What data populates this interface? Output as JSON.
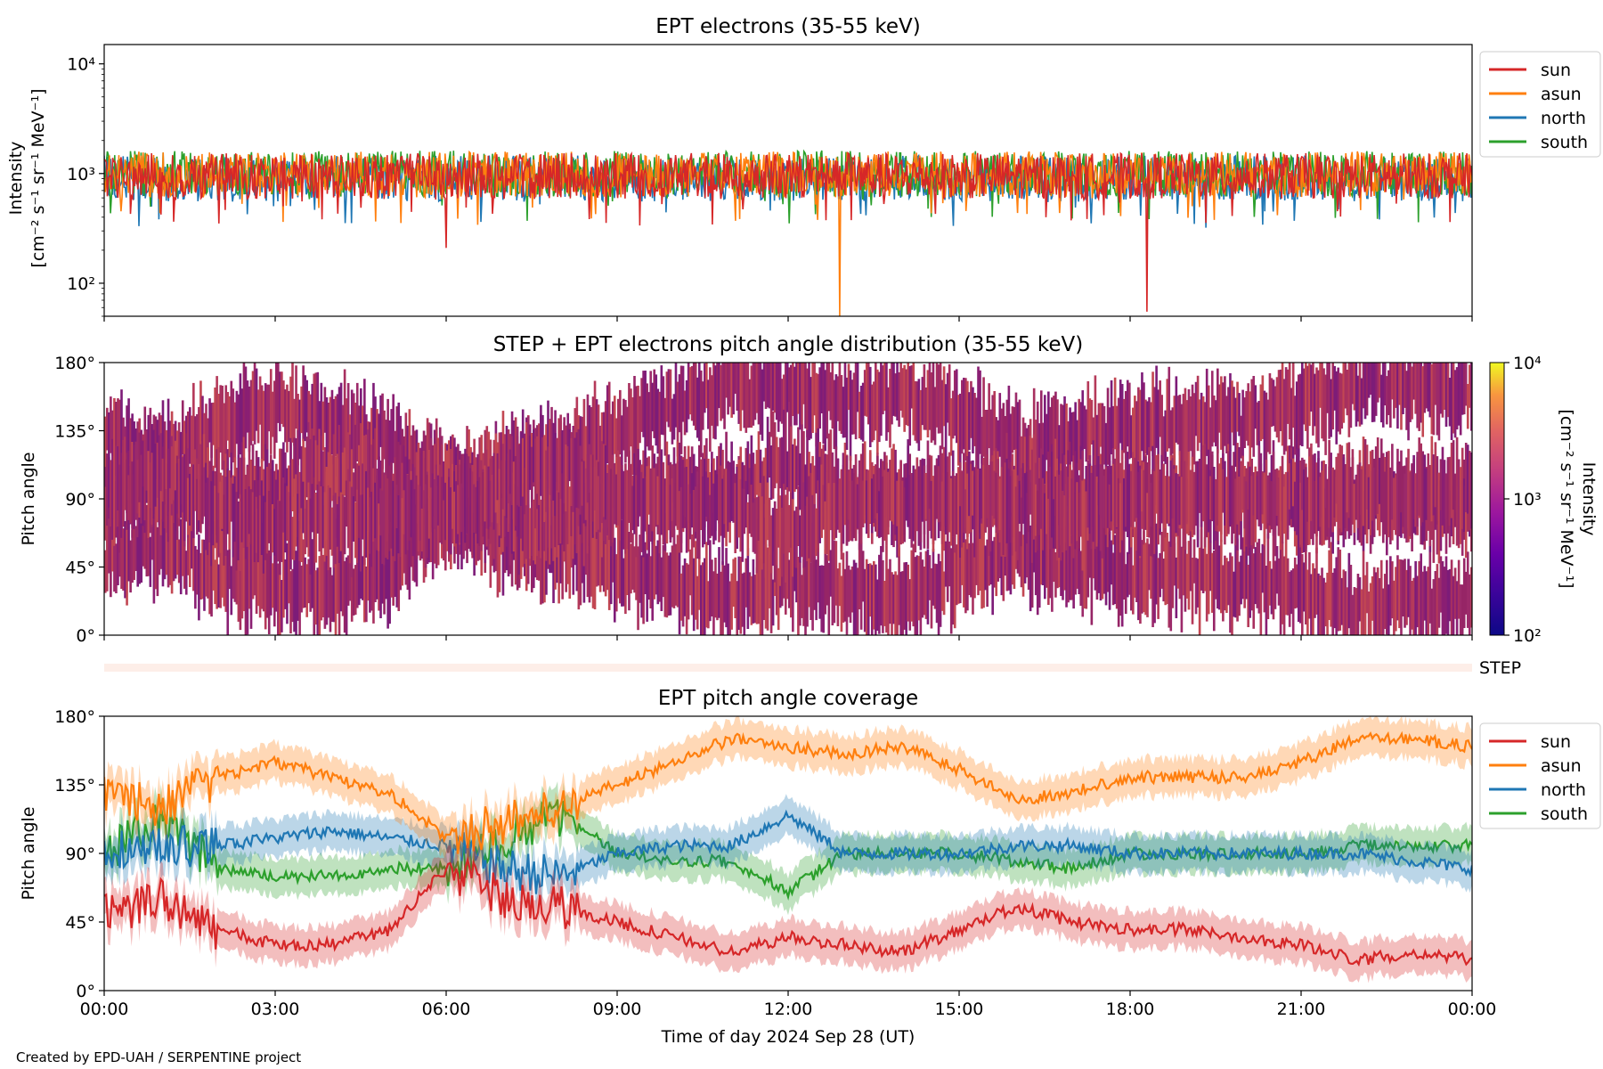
{
  "footer": {
    "credit": "Created by EPD-UAH / SERPENTINE project"
  },
  "colors": {
    "sun": "#d62728",
    "asun": "#ff7f0e",
    "north": "#1f77b4",
    "south": "#2ca02c",
    "step_strip": "#fdeee8"
  },
  "x_axis": {
    "ticks": [
      "00:00",
      "03:00",
      "06:00",
      "09:00",
      "12:00",
      "15:00",
      "18:00",
      "21:00",
      "00:00"
    ],
    "tick_hours": [
      0,
      3,
      6,
      9,
      12,
      15,
      18,
      21,
      24
    ],
    "label": "Time of day 2024 Sep 28 (UT)"
  },
  "step_label": "STEP",
  "chart_data": [
    {
      "id": "intensity",
      "type": "line",
      "title": "EPT electrons (35-55 keV)",
      "ylabel_line1": "Intensity",
      "ylabel_line2": "[cm⁻² s⁻¹ sr⁻¹ MeV⁻¹]",
      "yscale": "log",
      "ylim": [
        50,
        15000
      ],
      "xlim_hours": [
        0,
        24
      ],
      "yticks": [
        100,
        1000,
        10000
      ],
      "ytick_labels": [
        "10²",
        "10³",
        "10⁴"
      ],
      "legend_position": "outside-right-top",
      "series": [
        {
          "name": "sun",
          "color": "#d62728",
          "baseline": 950,
          "min_dips": [
            [
              6.0,
              210
            ],
            [
              18.3,
              55
            ]
          ]
        },
        {
          "name": "asun",
          "color": "#ff7f0e",
          "baseline": 980,
          "min_dips": [
            [
              12.9,
              50
            ]
          ]
        },
        {
          "name": "north",
          "color": "#1f77b4",
          "baseline": 900,
          "min_dips": []
        },
        {
          "name": "south",
          "color": "#2ca02c",
          "baseline": 1000,
          "min_dips": []
        }
      ]
    },
    {
      "id": "pad",
      "type": "heatmap",
      "title": "STEP + EPT electrons pitch angle distribution (35-55 keV)",
      "ylabel": "Pitch angle",
      "ylim": [
        0,
        180
      ],
      "yticks": [
        0,
        45,
        90,
        135,
        180
      ],
      "ytick_labels": [
        "0°",
        "45°",
        "90°",
        "135°",
        "180°"
      ],
      "xlim_hours": [
        0,
        24
      ],
      "colorbar": {
        "scale": "log",
        "range": [
          100,
          10000
        ],
        "tick_labels": [
          "10²",
          "10³",
          "10⁴"
        ],
        "label": "Intensity\n[cm⁻² s⁻¹ sr⁻¹ MeV⁻¹]",
        "colormap": "plasma-like"
      },
      "typical_value": 1000
    },
    {
      "id": "coverage",
      "type": "line",
      "title": "EPT pitch angle coverage",
      "ylabel": "Pitch angle",
      "ylim": [
        0,
        180
      ],
      "yticks": [
        0,
        45,
        90,
        135,
        180
      ],
      "ytick_labels": [
        "0°",
        "45°",
        "90°",
        "135°",
        "180°"
      ],
      "xlim_hours": [
        0,
        24
      ],
      "legend_position": "outside-right-top",
      "x": [
        0,
        1,
        2,
        3,
        4,
        5,
        6,
        7,
        8,
        9,
        10,
        11,
        12,
        13,
        14,
        15,
        16,
        17,
        18,
        19,
        20,
        21,
        22,
        23,
        24
      ],
      "series": [
        {
          "name": "sun",
          "color": "#d62728",
          "values": [
            50,
            60,
            40,
            30,
            30,
            40,
            80,
            60,
            55,
            45,
            35,
            25,
            35,
            30,
            25,
            40,
            55,
            45,
            40,
            40,
            35,
            30,
            20,
            25,
            20
          ]
        },
        {
          "name": "asun",
          "color": "#ff7f0e",
          "values": [
            130,
            120,
            140,
            150,
            140,
            130,
            100,
            110,
            120,
            135,
            150,
            165,
            160,
            155,
            160,
            145,
            125,
            130,
            140,
            140,
            140,
            150,
            165,
            165,
            160
          ]
        },
        {
          "name": "north",
          "color": "#1f77b4",
          "values": [
            90,
            95,
            95,
            100,
            105,
            100,
            95,
            80,
            75,
            90,
            95,
            95,
            115,
            90,
            90,
            90,
            95,
            95,
            90,
            90,
            90,
            90,
            90,
            85,
            80
          ]
        },
        {
          "name": "south",
          "color": "#2ca02c",
          "values": [
            90,
            110,
            80,
            75,
            75,
            80,
            80,
            100,
            115,
            90,
            85,
            85,
            65,
            90,
            90,
            90,
            85,
            80,
            90,
            90,
            90,
            90,
            95,
            95,
            95
          ]
        }
      ],
      "band_halfwidth_deg": 12
    }
  ]
}
